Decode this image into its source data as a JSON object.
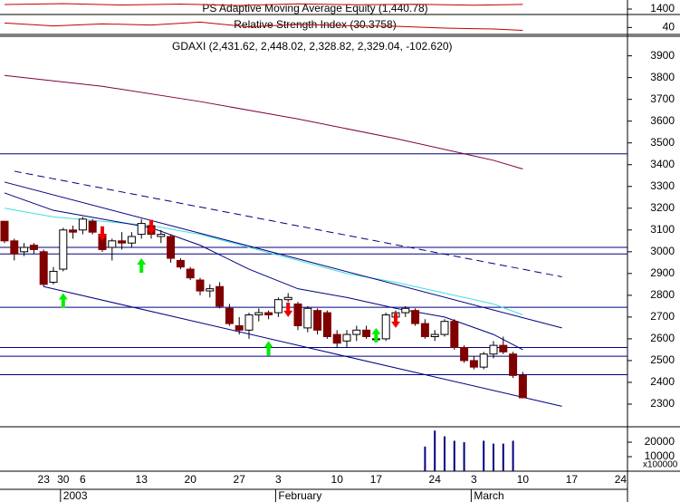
{
  "chart_data": {
    "type": "candlestick",
    "title": "GDAXI (2,431.62, 2,448.02, 2,328.82, 2,329.04, -102.620)",
    "categories": [
      null,
      null,
      null,
      null,
      "23",
      null,
      "30",
      null,
      "6",
      null,
      null,
      null,
      null,
      null,
      "13",
      null,
      null,
      null,
      null,
      "20",
      null,
      null,
      null,
      null,
      "27",
      null,
      null,
      null,
      "3",
      null,
      null,
      null,
      null,
      null,
      "10",
      null,
      null,
      null,
      "17",
      null,
      null,
      null,
      null,
      null,
      "24",
      null,
      null,
      null,
      "3",
      null,
      null,
      null,
      null,
      "10",
      null,
      null,
      null,
      null,
      "17",
      null,
      null,
      null,
      null,
      "24"
    ],
    "months": [
      null,
      null,
      null,
      null,
      null,
      null,
      "2003",
      null,
      null,
      null,
      null,
      null,
      null,
      null,
      null,
      null,
      null,
      null,
      null,
      null,
      null,
      null,
      null,
      null,
      null,
      null,
      null,
      null,
      "February",
      null,
      null,
      null,
      null,
      null,
      null,
      null,
      null,
      null,
      null,
      null,
      null,
      null,
      null,
      null,
      null,
      null,
      null,
      null,
      "March",
      null,
      null,
      null,
      null,
      null,
      null,
      null,
      null,
      null,
      null,
      null,
      null,
      null,
      null,
      null
    ],
    "open": [
      3140,
      3050,
      3000,
      3030,
      3000,
      2860,
      2920,
      3100,
      3100,
      3140,
      3080,
      3020,
      3050,
      3040,
      3080,
      3120,
      3070,
      3070,
      2960,
      2920,
      2870,
      2820,
      2840,
      2740,
      2660,
      2640,
      2710,
      2720,
      2720,
      2780,
      2760,
      2650,
      2730,
      2720,
      2620,
      2590,
      2620,
      2640,
      2600,
      2600,
      2700,
      2720,
      2730,
      2670,
      2610,
      2620,
      2680,
      2560,
      2500,
      2470,
      2530,
      2570,
      2530,
      2431.62,
      null,
      null,
      null,
      null,
      null,
      null,
      null,
      null,
      null,
      null
    ],
    "high": [
      3140,
      3060,
      3040,
      3040,
      3010,
      2930,
      3110,
      3120,
      3160,
      3150,
      3090,
      3060,
      3090,
      3090,
      3150,
      3130,
      3100,
      3080,
      2970,
      2930,
      2880,
      2850,
      2860,
      2760,
      2700,
      2720,
      2740,
      2730,
      2790,
      2810,
      2770,
      2750,
      2740,
      2730,
      2640,
      2640,
      2660,
      2660,
      2620,
      2720,
      2730,
      2750,
      2740,
      2690,
      2640,
      2690,
      2690,
      2570,
      2520,
      2540,
      2590,
      2610,
      2540,
      2448.02,
      null,
      null,
      null,
      null,
      null,
      null,
      null,
      null,
      null,
      null
    ],
    "low": [
      3040,
      2960,
      2980,
      2990,
      2840,
      2850,
      2910,
      3060,
      3080,
      3080,
      3000,
      2960,
      3010,
      3020,
      3060,
      3060,
      3040,
      2950,
      2920,
      2870,
      2800,
      2790,
      2740,
      2660,
      2620,
      2600,
      2680,
      2690,
      2700,
      2770,
      2640,
      2630,
      2620,
      2600,
      2560,
      2560,
      2590,
      2600,
      2590,
      2590,
      2680,
      2700,
      2660,
      2600,
      2590,
      2610,
      2550,
      2490,
      2460,
      2460,
      2510,
      2530,
      2420,
      2328.82,
      null,
      null,
      null,
      null,
      null,
      null,
      null,
      null,
      null,
      null
    ],
    "close": [
      3050,
      2990,
      3020,
      3010,
      2850,
      2910,
      3100,
      3090,
      3150,
      3090,
      3010,
      3050,
      3040,
      3070,
      3130,
      3080,
      3080,
      2970,
      2930,
      2880,
      2820,
      2830,
      2750,
      2670,
      2640,
      2710,
      2720,
      2710,
      2780,
      2790,
      2660,
      2740,
      2640,
      2610,
      2580,
      2620,
      2640,
      2610,
      2600,
      2710,
      2720,
      2740,
      2670,
      2610,
      2620,
      2680,
      2560,
      2500,
      2470,
      2530,
      2570,
      2540,
      2431.66,
      2329.04,
      null,
      null,
      null,
      null,
      null,
      null,
      null,
      null,
      null,
      null
    ],
    "up_color": "#ffffff",
    "down_color": "#800000",
    "ylim": [
      2200,
      3990
    ],
    "yticks": [
      2300,
      2400,
      2500,
      2600,
      2700,
      2800,
      2900,
      3000,
      3100,
      3200,
      3300,
      3400,
      3500,
      3600,
      3700,
      3800,
      3900
    ],
    "levels": [
      3450,
      3020,
      2990,
      2745,
      2560,
      2520,
      2435
    ],
    "level_color": "#000080",
    "lines": [
      {
        "color": "#800040",
        "dash": false,
        "x": [
          0,
          10,
          20,
          30,
          40,
          50,
          53
        ],
        "values": [
          3810,
          3760,
          3690,
          3610,
          3520,
          3420,
          3380
        ]
      },
      {
        "color": "#40e0e0",
        "dash": false,
        "x": [
          0,
          5,
          10,
          15,
          20,
          25,
          30,
          35,
          40,
          45,
          50,
          53
        ],
        "values": [
          3200,
          3160,
          3140,
          3120,
          3080,
          3020,
          2960,
          2900,
          2860,
          2810,
          2760,
          2710
        ]
      },
      {
        "color": "#000080",
        "dash": false,
        "x": [
          0,
          5,
          10,
          15,
          20,
          25,
          30,
          35,
          40,
          45,
          50,
          53
        ],
        "values": [
          3270,
          3190,
          3150,
          3110,
          3030,
          2920,
          2830,
          2790,
          2740,
          2700,
          2620,
          2550
        ]
      },
      {
        "color": "#000080",
        "dash": false,
        "x": [
          0,
          57
        ],
        "values": [
          3320,
          2650
        ]
      },
      {
        "color": "#000080",
        "dash": true,
        "x": [
          1,
          57
        ],
        "values": [
          3370,
          2885
        ]
      },
      {
        "color": "#000080",
        "dash": false,
        "x": [
          4,
          57
        ],
        "values": [
          2840,
          2290
        ]
      }
    ],
    "buy_signals": {
      "color": "#00ee00",
      "x": [
        6,
        14,
        27,
        38
      ],
      "values": [
        2810,
        2970,
        2590,
        2650
      ]
    },
    "sell_signals": {
      "color": "#ee0000",
      "x": [
        10,
        15,
        29,
        40
      ],
      "values": [
        3050,
        3080,
        2700,
        2650
      ]
    },
    "equity": {
      "title": "PS Adaptive Moving Average Equity (1,440.78)",
      "color": "#c00000",
      "x": [
        0,
        6,
        12,
        18,
        24,
        30,
        36,
        42,
        48,
        53
      ],
      "values": [
        1440,
        1448,
        1436,
        1444,
        1432,
        1446,
        1438,
        1442,
        1434,
        1440.78
      ],
      "ylim": [
        1360,
        1480
      ],
      "yticks": [
        1400
      ]
    },
    "rsi": {
      "title": "Relative Strength Index (30.3758)",
      "color": "#c00000",
      "x": [
        0,
        5,
        10,
        15,
        20,
        25,
        30,
        35,
        40,
        45,
        50,
        53
      ],
      "values": [
        55,
        45,
        52,
        48,
        58,
        42,
        50,
        46,
        44,
        38,
        35,
        30.3758
      ],
      "ylim": [
        20,
        80
      ],
      "yticks": [
        40
      ]
    },
    "volume": {
      "color": "#000080",
      "unit": "x100000",
      "ylim": [
        0,
        30000
      ],
      "yticks": [
        10000,
        20000
      ],
      "values": [
        null,
        null,
        null,
        null,
        null,
        null,
        null,
        null,
        null,
        null,
        null,
        null,
        null,
        null,
        null,
        null,
        null,
        null,
        null,
        null,
        null,
        null,
        null,
        null,
        null,
        null,
        null,
        null,
        null,
        null,
        null,
        null,
        null,
        null,
        null,
        null,
        null,
        null,
        null,
        null,
        null,
        null,
        null,
        17000,
        28000,
        24000,
        21000,
        20000,
        null,
        21000,
        19000,
        19000,
        21000,
        null,
        null,
        null,
        null,
        null,
        null,
        null,
        null,
        null,
        null,
        null
      ]
    }
  }
}
